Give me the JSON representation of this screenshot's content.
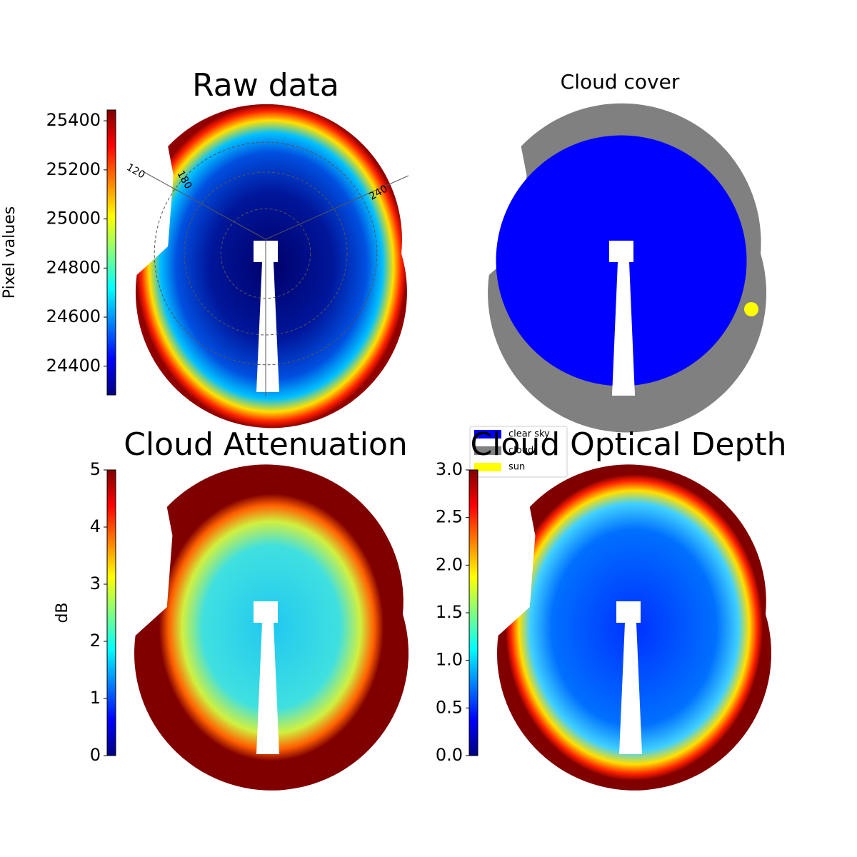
{
  "chart_data": [
    {
      "type": "image",
      "title": "Raw data",
      "colormap": "jet",
      "colorbar_label": "Pixel values",
      "ylim": [
        24283,
        25444
      ],
      "yticks": [
        24400,
        24600,
        24800,
        25000,
        25200,
        25400
      ],
      "polar_labels": [
        "120",
        "180",
        "240"
      ]
    },
    {
      "type": "image",
      "title": "Cloud cover",
      "colormap": "classes",
      "categories": [
        "clear sky",
        "cloud",
        "sun"
      ],
      "colors": [
        "#0000ff",
        "#808080",
        "#ffff00"
      ]
    },
    {
      "type": "image",
      "title": "Cloud Attenuation",
      "colormap": "jet",
      "colorbar_label": "dB",
      "ylim": [
        0,
        5
      ],
      "yticks": [
        0,
        1,
        2,
        3,
        4,
        5
      ]
    },
    {
      "type": "image",
      "title": "Cloud Optical Depth",
      "colormap": "jet",
      "ylim": [
        0,
        3
      ],
      "yticks": [
        {
          "value": 0,
          "label": "0.0"
        },
        0.5,
        {
          "value": 1,
          "label": "1.0"
        },
        1.5,
        {
          "value": 2,
          "label": "2.0"
        },
        2.5,
        {
          "value": 3,
          "label": "3.0"
        }
      ]
    }
  ]
}
